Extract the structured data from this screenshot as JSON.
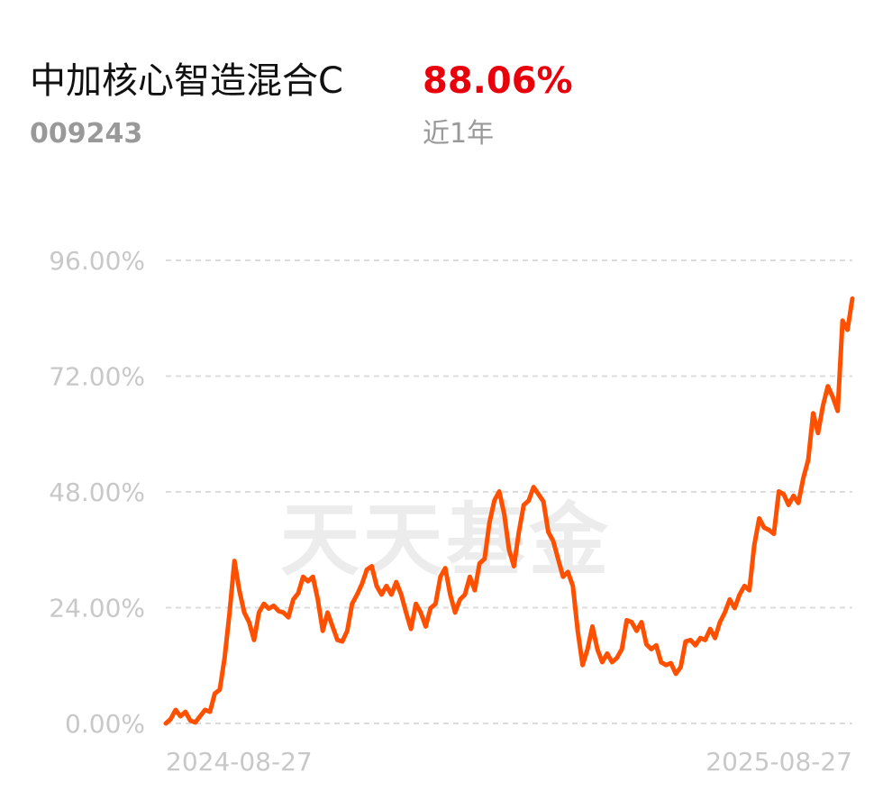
{
  "header": {
    "title": "中加核心智造混合C",
    "return_label": "88.06%",
    "code": "009243",
    "period": "近1年",
    "watermark": "天天基金"
  },
  "chart_data": {
    "type": "line",
    "categories": [
      "2024-08-27",
      null,
      null,
      null,
      null,
      null,
      null,
      null,
      null,
      null,
      null,
      null,
      null,
      null,
      null,
      null,
      null,
      null,
      null,
      null,
      null,
      null,
      null,
      null,
      null,
      null,
      null,
      null,
      null,
      null,
      null,
      null,
      null,
      null,
      null,
      null,
      null,
      null,
      null,
      null,
      null,
      null,
      null,
      null,
      null,
      null,
      null,
      null,
      null,
      null,
      null,
      null,
      null,
      null,
      null,
      null,
      null,
      null,
      null,
      null,
      null,
      null,
      null,
      null,
      null,
      null,
      null,
      null,
      null,
      null,
      null,
      null,
      null,
      null,
      null,
      null,
      null,
      null,
      null,
      null,
      null,
      null,
      null,
      null,
      null,
      null,
      null,
      null,
      null,
      null,
      null,
      null,
      null,
      null,
      null,
      null,
      null,
      null,
      null,
      null,
      null,
      null,
      null,
      null,
      null,
      null,
      null,
      null,
      null,
      null,
      null,
      null,
      null,
      null,
      null,
      null,
      null,
      null,
      null,
      null,
      null,
      null,
      null,
      null,
      null,
      null,
      null,
      null,
      null,
      null,
      null,
      null,
      null,
      null,
      null,
      null,
      null,
      null,
      null,
      null,
      "2025-08-27"
    ],
    "series": [
      {
        "color": "#ff5000",
        "values": [
          0,
          0.9,
          2.8,
          1.5,
          2.4,
          0.6,
          0.2,
          1.5,
          2.8,
          2.4,
          6.2,
          7,
          13.6,
          23,
          33.7,
          27.6,
          23,
          21,
          17.3,
          23,
          24.8,
          23.8,
          24.4,
          23.3,
          23,
          22,
          25.7,
          27,
          30.4,
          29.5,
          30.4,
          25.7,
          19.2,
          23,
          20.1,
          17.3,
          17,
          19.2,
          24.8,
          26.7,
          28.9,
          31.9,
          32.6,
          28.5,
          26.7,
          28.5,
          26.7,
          29.3,
          26.7,
          23,
          19.6,
          24.8,
          23,
          20.1,
          23.9,
          24.8,
          30.4,
          32.2,
          26.7,
          23,
          25.7,
          26.7,
          30.4,
          27.6,
          33.2,
          34.1,
          41.6,
          46.2,
          48.1,
          43.4,
          36,
          32.6,
          39.7,
          45.3,
          46.2,
          49,
          47.5,
          46,
          39.7,
          37.8,
          34.1,
          30.4,
          31.4,
          28.5,
          19.2,
          12.1,
          15.4,
          20.1,
          15.4,
          12.7,
          14.5,
          12.7,
          13.6,
          15.4,
          21.4,
          21,
          19.2,
          21,
          16.4,
          15.4,
          16.2,
          12.7,
          12.1,
          12.5,
          10.3,
          11.7,
          17,
          17.3,
          16.2,
          17.7,
          17.3,
          19.6,
          17.7,
          21,
          23,
          25.7,
          23.9,
          26.7,
          28.5,
          27.6,
          36.9,
          42.5,
          40.6,
          40.1,
          39.3,
          48.1,
          47.5,
          45.3,
          47.2,
          45.7,
          50.9,
          54.6,
          64.3,
          60.2,
          65.8,
          69.9,
          67.7,
          64.8,
          83.5,
          81.6,
          88.06
        ]
      }
    ],
    "ylim": [
      0,
      96
    ],
    "yticks": [
      {
        "value": 0,
        "label": "0.00%"
      },
      {
        "value": 24,
        "label": "24.00%"
      },
      {
        "value": 48,
        "label": "48.00%"
      },
      {
        "value": 72,
        "label": "72.00%"
      },
      {
        "value": 96,
        "label": "96.00%"
      }
    ],
    "grid": true
  }
}
